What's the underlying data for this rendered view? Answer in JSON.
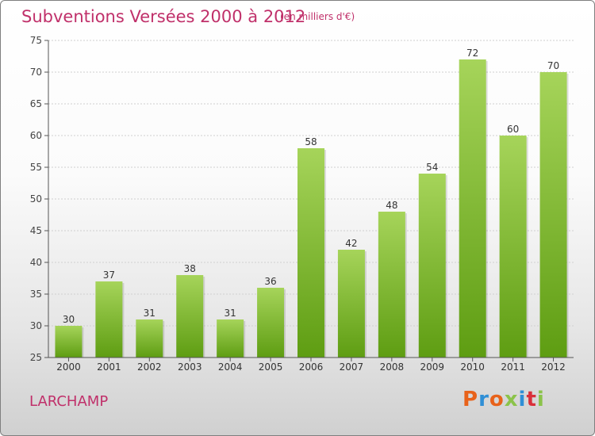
{
  "header": {
    "title": "Subventions Versées 2000 à 2012",
    "unit_note": "(en milliers d'€)"
  },
  "footer": {
    "commune": "LARCHAMP",
    "brand": "Proxiti",
    "brand_colors": [
      "#e8621a",
      "#2f8fd6",
      "#e8621a",
      "#8bc34a",
      "#2f8fd6",
      "#d9303a",
      "#8bc34a"
    ]
  },
  "colors": {
    "accent": "#c0306a",
    "bar_top": "#a6d45a",
    "bar_bottom": "#5e9d12",
    "grid": "#cfcfcf",
    "axis": "#555555"
  },
  "chart_data": {
    "type": "bar",
    "title": "Subventions Versées 2000 à 2012",
    "subtitle": "(en milliers d'€)",
    "xlabel": "",
    "ylabel": "",
    "categories": [
      "2000",
      "2001",
      "2002",
      "2003",
      "2004",
      "2005",
      "2006",
      "2007",
      "2008",
      "2009",
      "2010",
      "2011",
      "2012"
    ],
    "values": [
      30,
      37,
      31,
      38,
      31,
      36,
      58,
      42,
      48,
      54,
      72,
      60,
      70
    ],
    "ylim": [
      25,
      75
    ],
    "yticks": [
      25,
      30,
      35,
      40,
      45,
      50,
      55,
      60,
      65,
      70,
      75
    ],
    "grid": true,
    "legend": "none"
  }
}
